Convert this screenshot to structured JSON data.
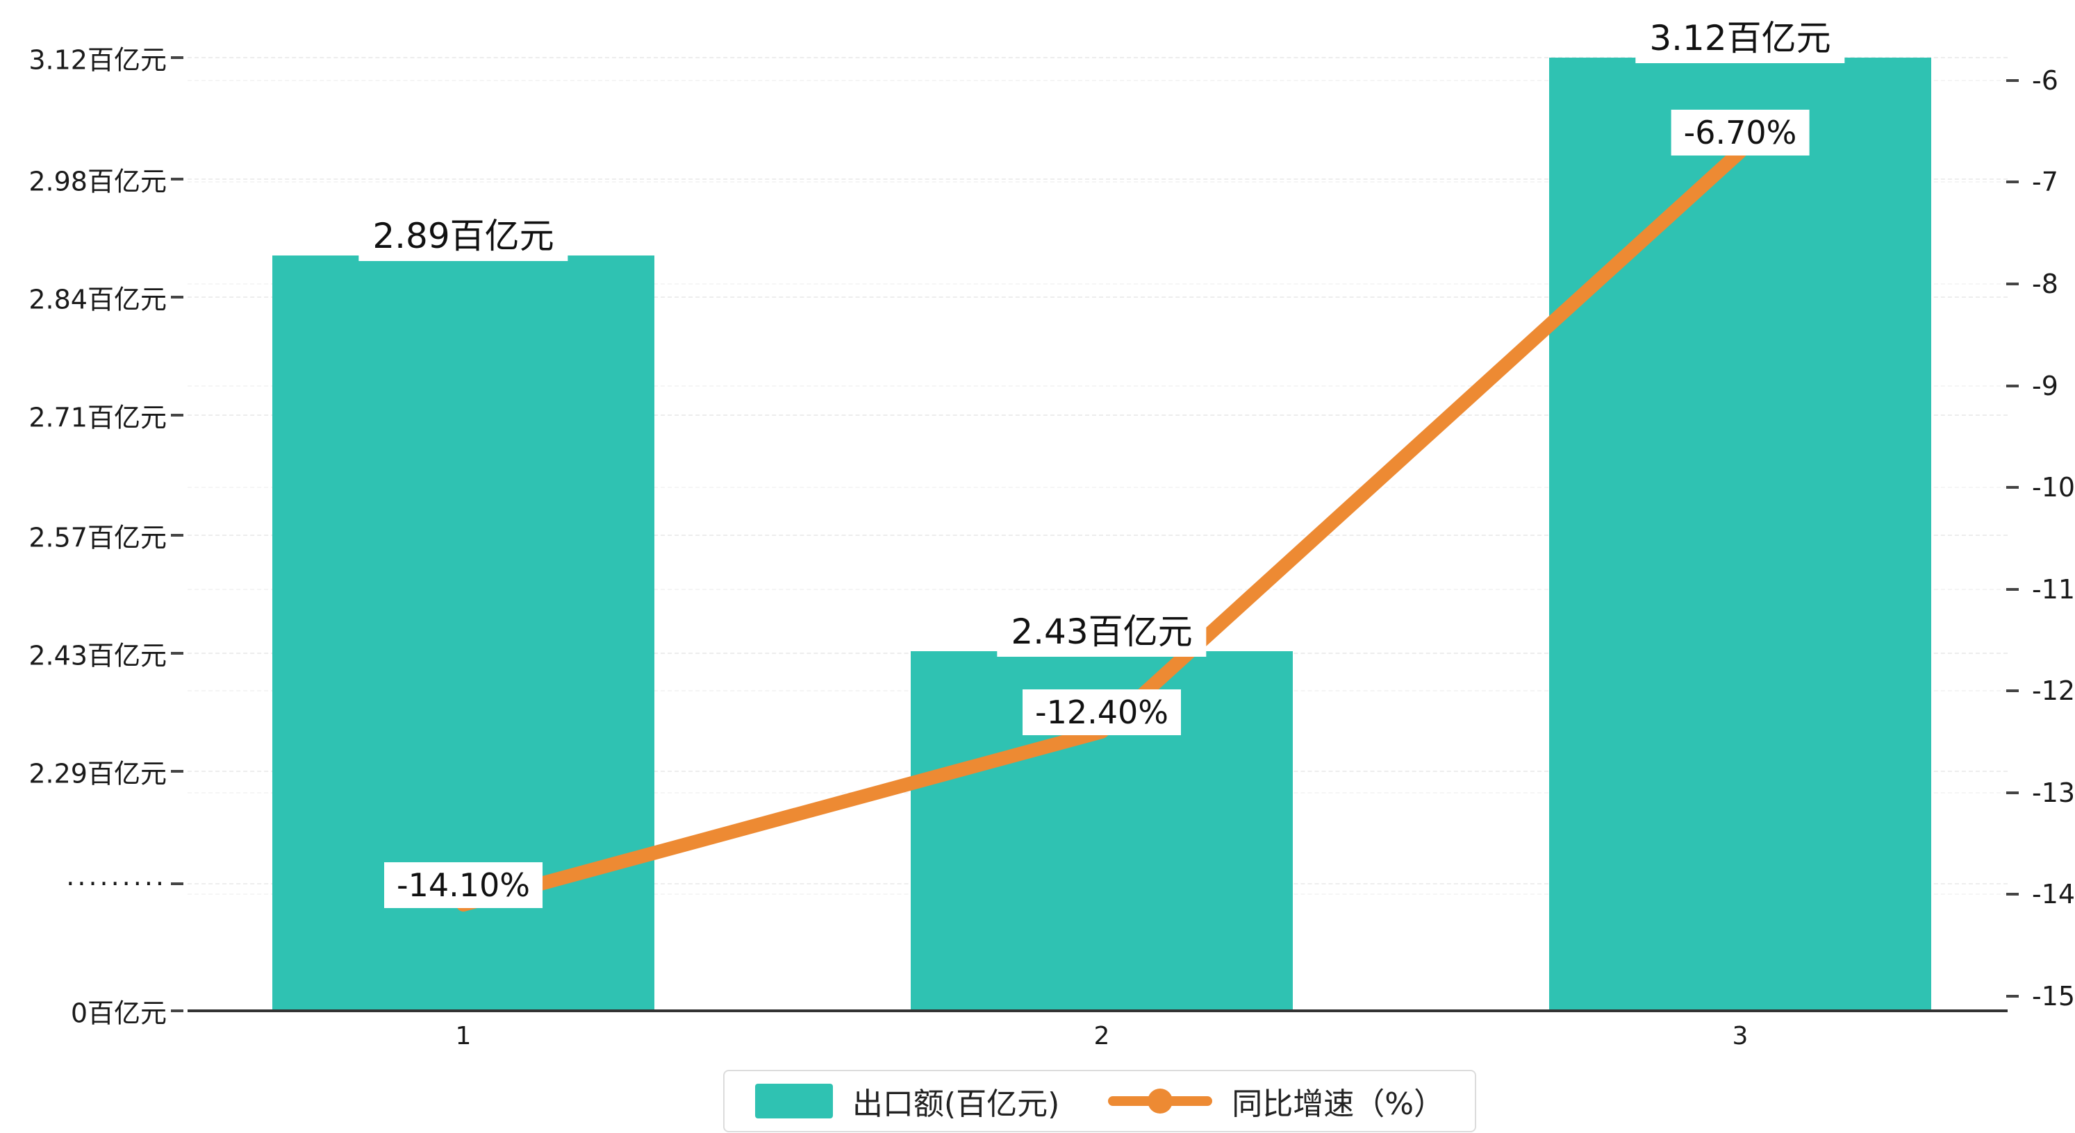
{
  "chart_data": {
    "type": "bar",
    "combo": "bar+line dual axis",
    "categories": [
      "1",
      "2",
      "3"
    ],
    "series": [
      {
        "name": "出口额(百亿元)",
        "type": "bar",
        "axis": "left",
        "values": [
          2.89,
          2.43,
          3.12
        ],
        "labels": [
          "2.89百亿元",
          "2.43百亿元",
          "3.12百亿元"
        ]
      },
      {
        "name": "同比增速（%）",
        "type": "line",
        "axis": "right",
        "values": [
          -14.1,
          -12.4,
          -6.7
        ],
        "labels": [
          "-14.10%",
          "-12.40%",
          "-6.70%"
        ]
      }
    ],
    "left_axis": {
      "unit": "百亿元",
      "broken_axis": true,
      "tick_labels": [
        "3.12百亿元",
        "2.98百亿元",
        "2.84百亿元",
        "2.71百亿元",
        "2.57百亿元",
        "2.43百亿元",
        "2.29百亿元",
        "·········",
        "0百亿元"
      ],
      "visible_range": [
        2.29,
        3.12
      ]
    },
    "right_axis": {
      "unit": "%",
      "tick_labels": [
        "-6",
        "-7",
        "-8",
        "-9",
        "-10",
        "-11",
        "-12",
        "-13",
        "-14",
        "-15"
      ],
      "range": [
        -15,
        -6
      ]
    },
    "grid": true,
    "legend_position": "bottom-center",
    "title": ""
  },
  "legend": {
    "bar_label": "出口额(百亿元)",
    "line_label": "同比增速（%）"
  },
  "colors": {
    "bar": "#2FC2B2",
    "line": "#ED8A33",
    "axis_text": "#1a1a1a",
    "grid": "#ededed"
  }
}
